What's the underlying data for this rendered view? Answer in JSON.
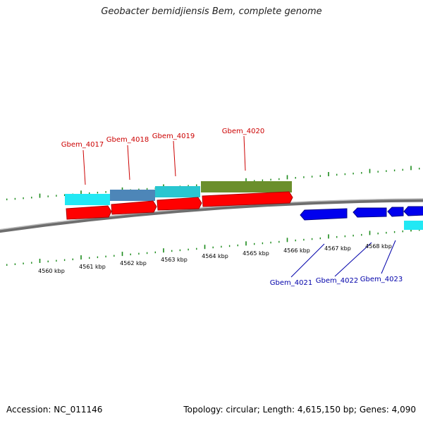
{
  "title": "Geobacter bemidjiensis Bem, complete genome",
  "footer": {
    "accession": "Accession: NC_011146",
    "summary": "Topology: circular; Length: 4,615,150 bp; Genes: 4,090"
  },
  "colors": {
    "forward_gene": "#ff0000",
    "reverse_gene": "#0000ee",
    "upper_label": "#cc0000",
    "lower_label": "#0000aa",
    "tick": "#1a8a1a",
    "backbone": "#808080",
    "cyan_feature": "#22e0ee",
    "steelblue_feature": "#4a84b4",
    "teal_feature": "#28c0c8",
    "olive_feature": "#6b8c2a"
  },
  "scale_labels": [
    "4560 kbp",
    "4561 kbp",
    "4562 kbp",
    "4563 kbp",
    "4564 kbp",
    "4565 kbp",
    "4566 kbp",
    "4567 kbp",
    "4568 kbp"
  ],
  "upper_genes": [
    "Gbem_4017",
    "Gbem_4018",
    "Gbem_4019",
    "Gbem_4020"
  ],
  "lower_genes": [
    "Gbem_4021",
    "Gbem_4022",
    "Gbem_4023"
  ]
}
